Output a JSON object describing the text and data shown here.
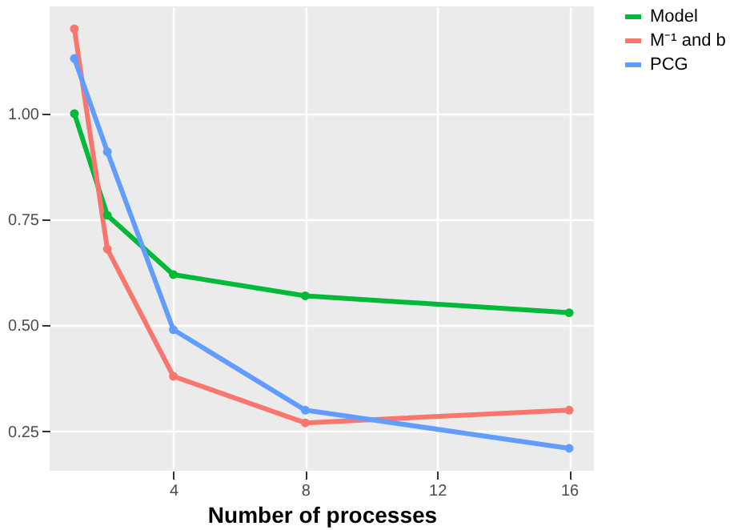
{
  "chart_data": {
    "type": "line",
    "xlabel": "Number of processes",
    "x": [
      1,
      2,
      4,
      8,
      16
    ],
    "series": [
      {
        "name": "Model",
        "color": "#00ba38",
        "values": [
          1.0,
          0.76,
          0.62,
          0.57,
          0.53
        ]
      },
      {
        "name": "M⁻¹ and b",
        "color": "#f8766d",
        "values": [
          1.2,
          0.68,
          0.38,
          0.27,
          0.3
        ]
      },
      {
        "name": "PCG",
        "color": "#619cff",
        "values": [
          1.13,
          0.91,
          0.49,
          0.3,
          0.21
        ]
      }
    ],
    "xlim": [
      0.25,
      16.75
    ],
    "xticks": [
      4,
      8,
      12,
      16
    ],
    "ylim": [
      0.157,
      1.253
    ],
    "yticks": [
      {
        "value": 0.25,
        "label": "0.25"
      },
      {
        "value": 0.5,
        "label": "0.50"
      },
      {
        "value": 0.75,
        "label": "0.75"
      },
      {
        "value": 1.0,
        "label": "1.00"
      }
    ],
    "grid": true,
    "legend": "right",
    "marker": "circle",
    "line_style": "solid"
  }
}
